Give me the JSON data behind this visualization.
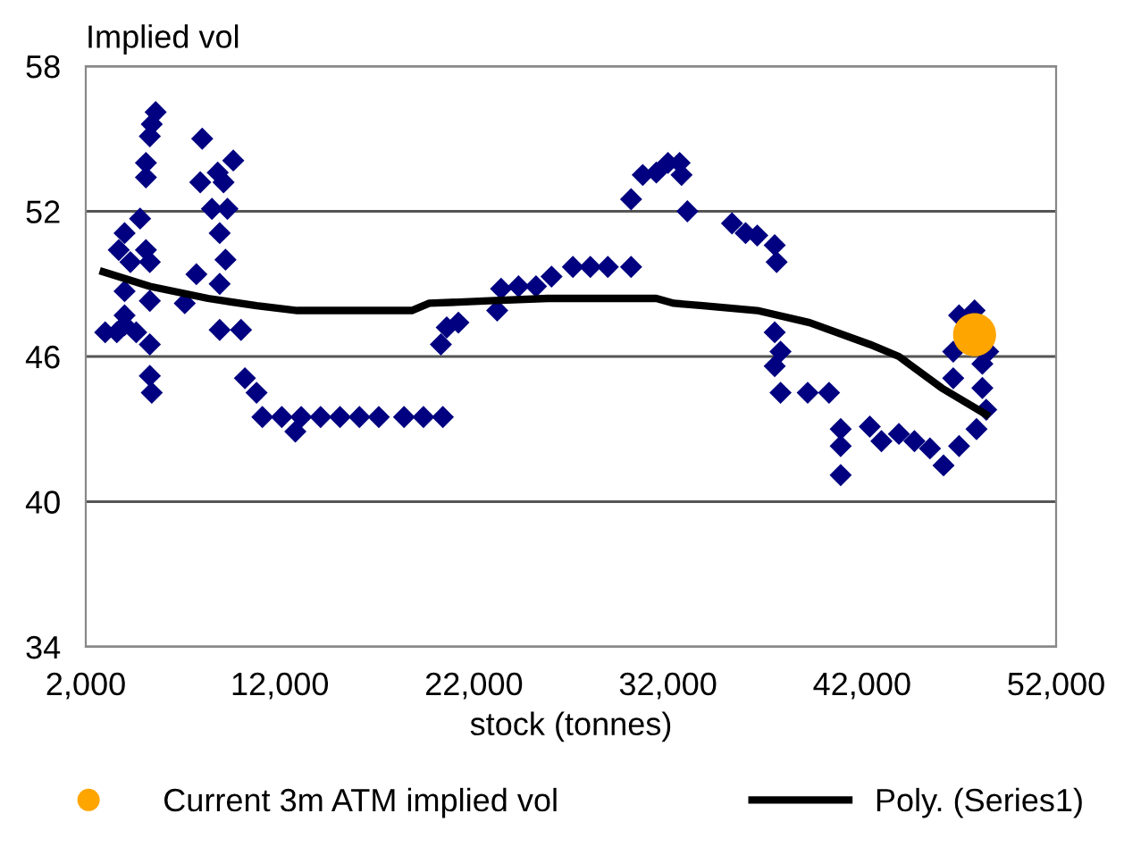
{
  "chart_data": {
    "type": "scatter",
    "ylabel": "Implied vol",
    "xlabel": "stock (tonnes)",
    "xlim": [
      2000,
      52000
    ],
    "xticks": [
      {
        "value": 2000,
        "label": "2,000"
      },
      {
        "value": 12000,
        "label": "12,000"
      },
      {
        "value": 22000,
        "label": "22,000"
      },
      {
        "value": 32000,
        "label": "32,000"
      },
      {
        "value": 42000,
        "label": "42,000"
      },
      {
        "value": 52000,
        "label": "52,000"
      }
    ],
    "ylim": [
      34,
      58
    ],
    "yticks": [
      34,
      40,
      46,
      52,
      58
    ],
    "grid": "y",
    "legend": "bottom",
    "series": [
      {
        "color": "#000080",
        "marker": "diamond",
        "x": [
          5600,
          5400,
          5300,
          5100,
          5100,
          4800,
          4000,
          3700,
          5100,
          4300,
          5300,
          4000,
          5300,
          4000,
          3000,
          3600,
          4600,
          5300,
          5300,
          5400,
          4000,
          8000,
          9600,
          8800,
          7900,
          9100,
          8500,
          9300,
          8900,
          9200,
          7700,
          8900,
          7100,
          8900,
          10000,
          10200,
          10800,
          11100,
          12100,
          13100,
          14100,
          15100,
          16100,
          17100,
          18400,
          19400,
          20400,
          20600,
          12800,
          20300,
          21200,
          23200,
          23400,
          24300,
          25200,
          26000,
          27100,
          28000,
          28900,
          30100,
          30100,
          30700,
          31400,
          32000,
          32600,
          32700,
          33000,
          35300,
          36000,
          36600,
          37500,
          37600,
          37500,
          37800,
          37500,
          37800,
          39200,
          40300,
          40900,
          40900,
          40900,
          42400,
          43000,
          43900,
          44700,
          45500,
          46200,
          47000,
          47900,
          48400,
          48200,
          46700,
          48200,
          46700,
          48500,
          47000,
          47800
        ],
        "values": [
          56.1,
          55.6,
          55.1,
          54.0,
          53.4,
          51.7,
          51.1,
          50.4,
          50.4,
          49.9,
          49.9,
          48.7,
          48.3,
          47.7,
          47.0,
          47.0,
          47.0,
          46.5,
          45.2,
          44.5,
          47.3,
          55.0,
          54.1,
          53.6,
          53.2,
          53.2,
          52.1,
          52.1,
          51.1,
          50.0,
          49.4,
          49.0,
          48.2,
          47.1,
          47.1,
          45.1,
          44.5,
          43.5,
          43.5,
          43.5,
          43.5,
          43.5,
          43.5,
          43.5,
          43.5,
          43.5,
          43.5,
          47.2,
          42.9,
          46.5,
          47.4,
          47.9,
          48.8,
          48.9,
          48.9,
          49.3,
          49.7,
          49.7,
          49.7,
          49.7,
          52.5,
          53.5,
          53.6,
          54.0,
          54.0,
          53.5,
          52.0,
          51.5,
          51.1,
          51.0,
          50.6,
          49.9,
          47.0,
          46.2,
          45.6,
          44.5,
          44.5,
          44.5,
          43.0,
          42.3,
          41.1,
          43.1,
          42.5,
          42.8,
          42.5,
          42.2,
          41.5,
          42.3,
          43.0,
          43.8,
          44.7,
          45.1,
          45.7,
          46.2,
          46.2,
          47.7,
          47.9
        ]
      },
      {
        "name": "Current 3m ATM implied vol",
        "color": "#ffa500",
        "marker": "circle",
        "x": [
          47800
        ],
        "values": [
          46.9
        ]
      },
      {
        "name": "Poly. (Series1)",
        "type": "line",
        "color": "#000000",
        "marker": "none",
        "line_style": "solid",
        "x": [
          2900,
          5300,
          8300,
          10800,
          12900,
          18800,
          19700,
          22800,
          25800,
          31400,
          32300,
          33800,
          36600,
          39300,
          42400,
          43900,
          46100,
          48400
        ],
        "values": [
          49.5,
          48.9,
          48.4,
          48.1,
          47.9,
          47.9,
          48.2,
          48.3,
          48.4,
          48.4,
          48.2,
          48.1,
          47.9,
          47.4,
          46.5,
          46.0,
          44.7,
          43.6
        ]
      }
    ]
  }
}
